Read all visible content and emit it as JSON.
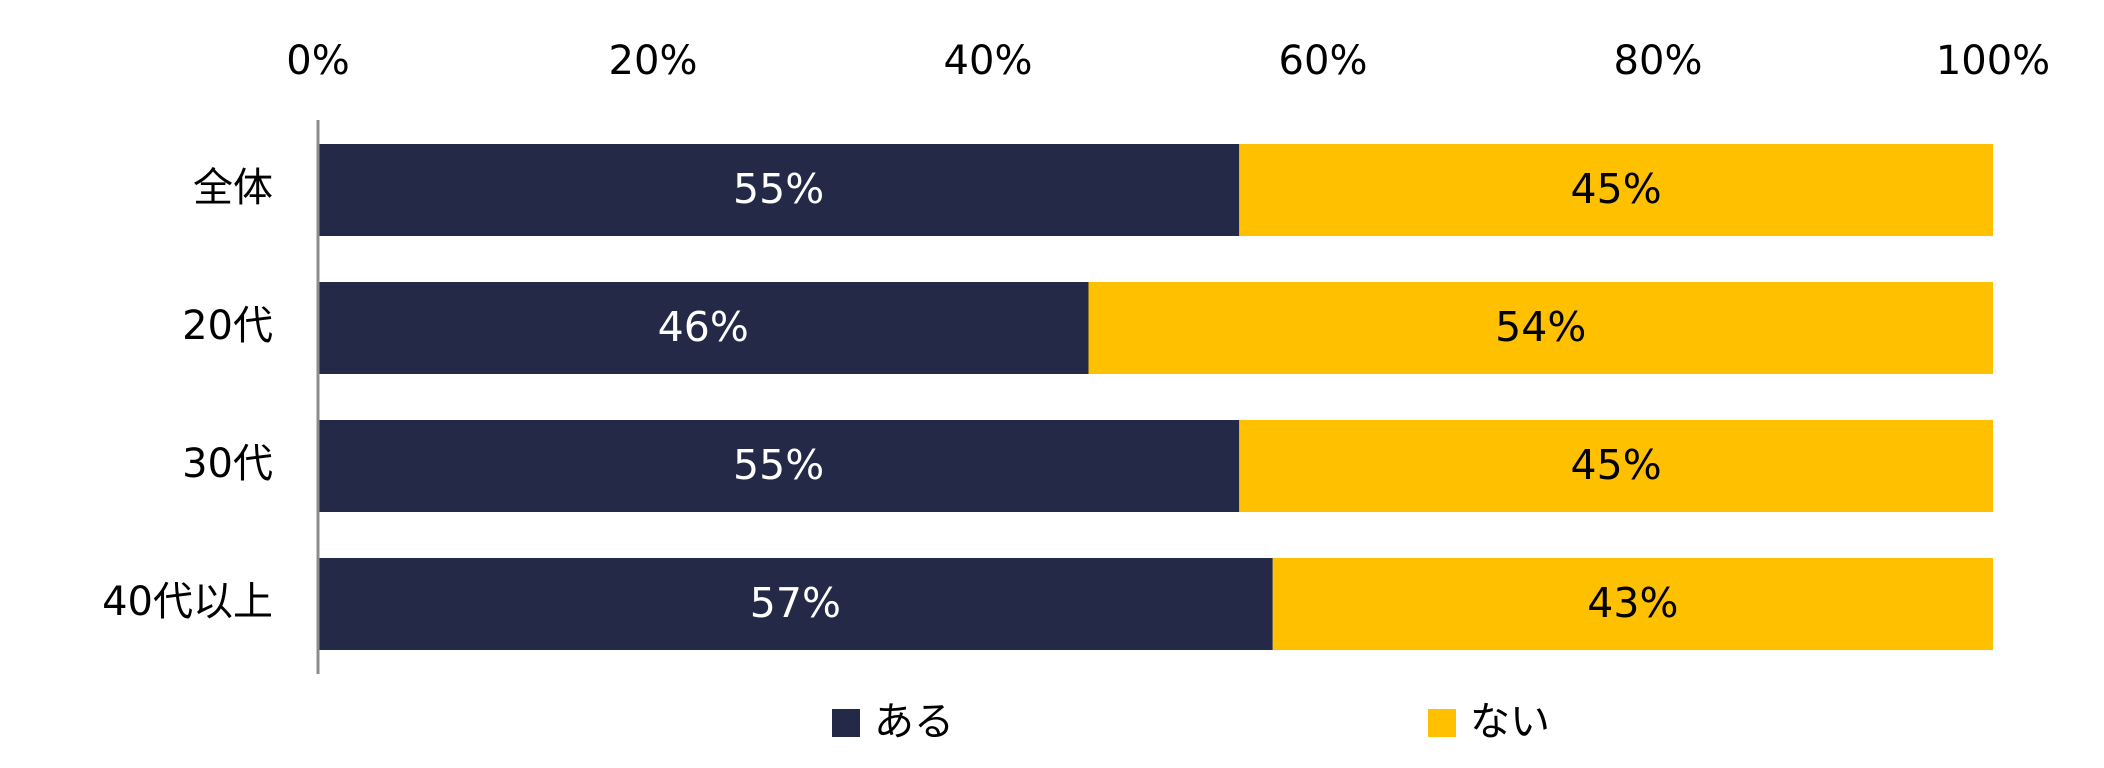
{
  "chart_data": {
    "type": "bar",
    "orientation": "horizontal",
    "stacked": true,
    "percent_stacked": true,
    "categories": [
      "全体",
      "20代",
      "30代",
      "40代以上"
    ],
    "series": [
      {
        "name": "ある",
        "values": [
          55,
          46,
          55,
          57
        ],
        "color": "#232946",
        "label_color": "#ffffff"
      },
      {
        "name": "ない",
        "values": [
          45,
          54,
          45,
          43
        ],
        "color": "#FFC000",
        "label_color": "#000000"
      }
    ],
    "x_ticks": [
      0,
      20,
      40,
      60,
      80,
      100
    ],
    "tick_suffix": "%",
    "xlim": [
      0,
      100
    ],
    "x_axis_position": "top",
    "grid": false,
    "legend_position": "bottom",
    "title": "",
    "xlabel": "",
    "ylabel": ""
  }
}
